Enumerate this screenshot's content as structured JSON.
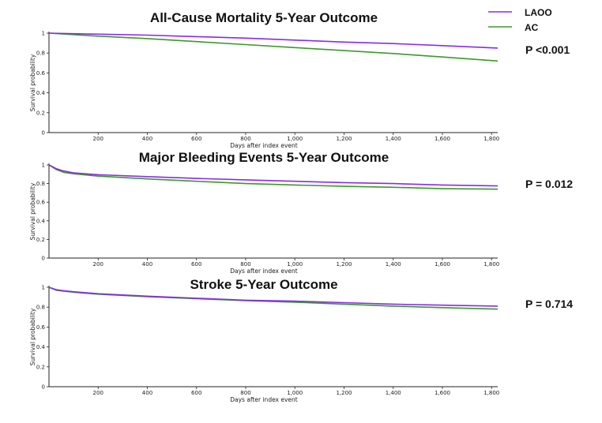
{
  "legend": [
    {
      "name": "LAOO",
      "color": "#8a2be2"
    },
    {
      "name": "AC",
      "color": "#3a9a2a"
    }
  ],
  "chart_data": [
    {
      "type": "line",
      "title": "All-Cause Mortality 5-Year Outcome",
      "xlabel": "Days after index event",
      "ylabel": "Survival probability",
      "xlim": [
        0,
        1825
      ],
      "ylim": [
        0,
        1
      ],
      "xticks": [
        200,
        400,
        600,
        800,
        1000,
        1200,
        1400,
        1600,
        1800
      ],
      "xtick_labels": [
        "200",
        "400",
        "600",
        "800",
        "1,000",
        "1,200",
        "1,400",
        "1,600",
        "1,800"
      ],
      "yticks": [
        0,
        0.2,
        0.4,
        0.6,
        0.8,
        1
      ],
      "ytick_labels": [
        "0",
        "0.2",
        "0.4",
        "0.6",
        "0.8",
        "1"
      ],
      "annotation": "P <0.001",
      "x": [
        0,
        200,
        400,
        600,
        800,
        1000,
        1200,
        1400,
        1600,
        1825
      ],
      "series": [
        {
          "name": "LAOO",
          "values": [
            1.0,
            0.99,
            0.98,
            0.965,
            0.95,
            0.93,
            0.91,
            0.895,
            0.875,
            0.85
          ]
        },
        {
          "name": "AC",
          "values": [
            1.0,
            0.97,
            0.945,
            0.915,
            0.885,
            0.855,
            0.825,
            0.795,
            0.76,
            0.72
          ]
        }
      ]
    },
    {
      "type": "line",
      "title": "Major Bleeding Events 5-Year Outcome",
      "xlabel": "Days after index event",
      "ylabel": "Survival probability",
      "xlim": [
        0,
        1825
      ],
      "ylim": [
        0,
        1
      ],
      "xticks": [
        200,
        400,
        600,
        800,
        1000,
        1200,
        1400,
        1600,
        1800
      ],
      "xtick_labels": [
        "200",
        "400",
        "600",
        "800",
        "1,000",
        "1,200",
        "1,400",
        "1,600",
        "1,800"
      ],
      "yticks": [
        0,
        0.2,
        0.4,
        0.6,
        0.8,
        1
      ],
      "ytick_labels": [
        "0",
        "0.2",
        "0.4",
        "0.6",
        "0.8",
        "1"
      ],
      "annotation": "P = 0.012",
      "x": [
        0,
        30,
        60,
        100,
        200,
        400,
        600,
        800,
        1000,
        1200,
        1400,
        1600,
        1825
      ],
      "series": [
        {
          "name": "LAOO",
          "values": [
            1.0,
            0.96,
            0.935,
            0.915,
            0.895,
            0.875,
            0.855,
            0.84,
            0.825,
            0.81,
            0.8,
            0.785,
            0.775
          ]
        },
        {
          "name": "AC",
          "values": [
            1.0,
            0.95,
            0.92,
            0.905,
            0.88,
            0.85,
            0.825,
            0.8,
            0.785,
            0.77,
            0.76,
            0.745,
            0.74
          ]
        }
      ]
    },
    {
      "type": "line",
      "title": "Stroke 5-Year Outcome",
      "xlabel": "Days after index event",
      "ylabel": "Survival probability",
      "xlim": [
        0,
        1825
      ],
      "ylim": [
        0,
        1
      ],
      "xticks": [
        200,
        400,
        600,
        800,
        1000,
        1200,
        1400,
        1600,
        1800
      ],
      "xtick_labels": [
        "200",
        "400",
        "600",
        "800",
        "1,000",
        "1,200",
        "1,400",
        "1,600",
        "1,800"
      ],
      "yticks": [
        0,
        0.2,
        0.4,
        0.6,
        0.8,
        1
      ],
      "ytick_labels": [
        "0",
        "0.2",
        "0.4",
        "0.6",
        "0.8",
        "1"
      ],
      "annotation": "P = 0.714",
      "x": [
        0,
        30,
        60,
        100,
        200,
        400,
        600,
        800,
        1000,
        1200,
        1400,
        1600,
        1825
      ],
      "series": [
        {
          "name": "LAOO",
          "values": [
            1.0,
            0.975,
            0.965,
            0.955,
            0.935,
            0.91,
            0.89,
            0.87,
            0.86,
            0.845,
            0.83,
            0.82,
            0.81
          ]
        },
        {
          "name": "AC",
          "values": [
            1.0,
            0.97,
            0.96,
            0.95,
            0.93,
            0.905,
            0.885,
            0.865,
            0.85,
            0.83,
            0.81,
            0.795,
            0.78
          ]
        }
      ]
    }
  ]
}
